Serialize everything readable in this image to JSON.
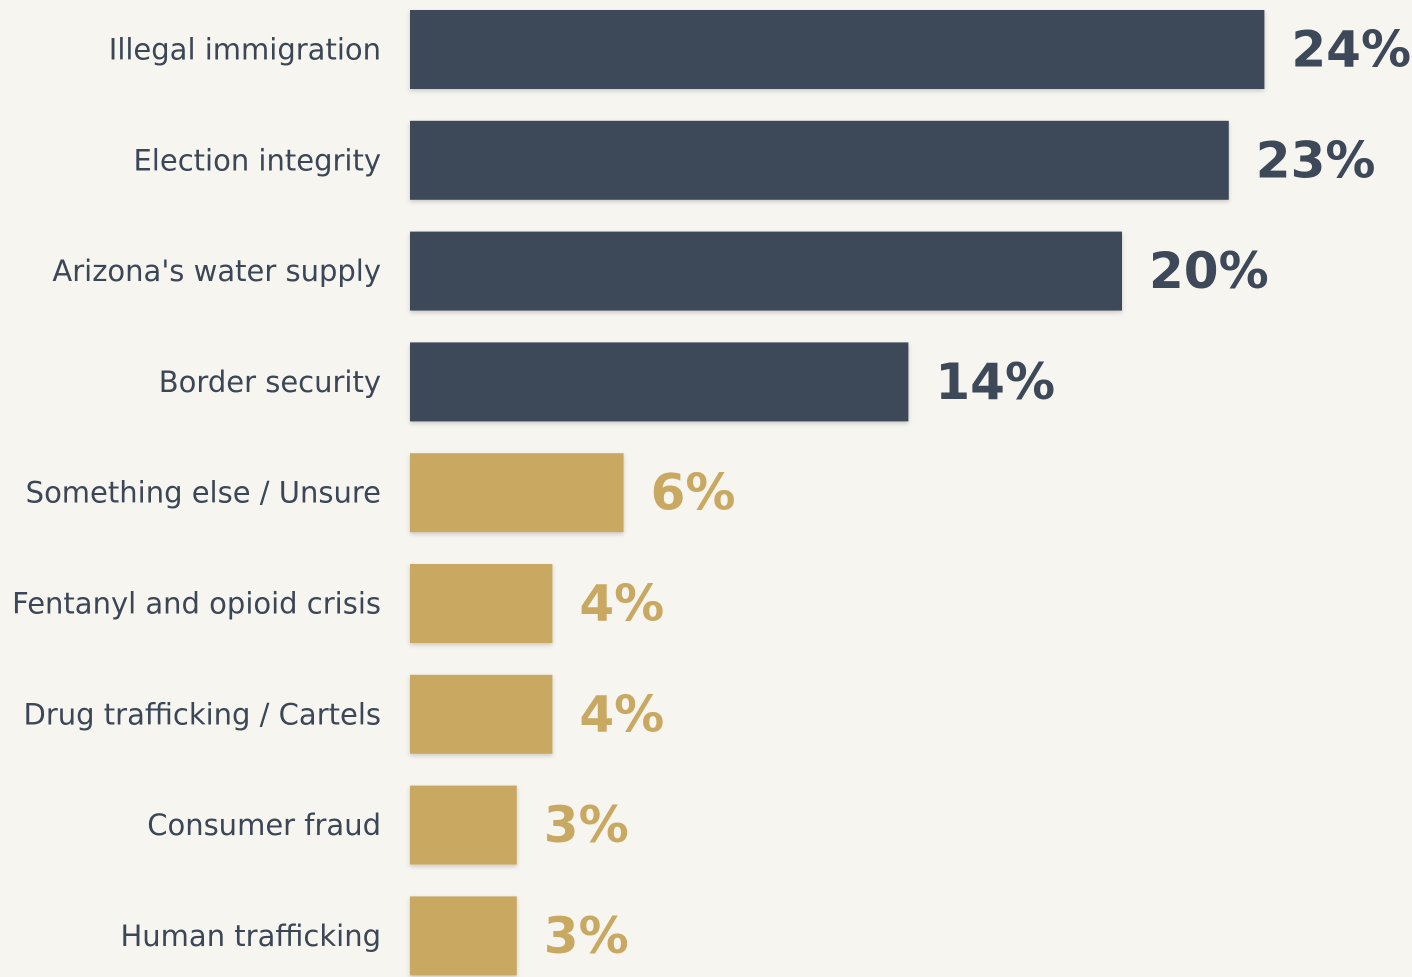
{
  "colors": {
    "background": "#f6f5f0",
    "primary": "#3d4858",
    "secondary": "#c9a862",
    "label": "#3b4656"
  },
  "chart_data": {
    "type": "bar",
    "orientation": "horizontal",
    "title": "",
    "xlabel": "",
    "ylabel": "",
    "xlim": [
      0,
      24
    ],
    "grid": false,
    "legend": "none",
    "categories": [
      "Illegal immigration",
      "Election integrity",
      "Arizona's water supply",
      "Border security",
      "Something else / Unsure",
      "Fentanyl and opioid crisis",
      "Drug trafficking / Cartels",
      "Consumer fraud",
      "Human trafficking"
    ],
    "values": [
      24,
      23,
      20,
      14,
      6,
      4,
      4,
      3,
      3
    ],
    "value_labels": [
      "24%",
      "23%",
      "20%",
      "14%",
      "6%",
      "4%",
      "4%",
      "3%",
      "3%"
    ],
    "bar_colors": [
      "primary",
      "primary",
      "primary",
      "primary",
      "secondary",
      "secondary",
      "secondary",
      "secondary",
      "secondary"
    ]
  }
}
